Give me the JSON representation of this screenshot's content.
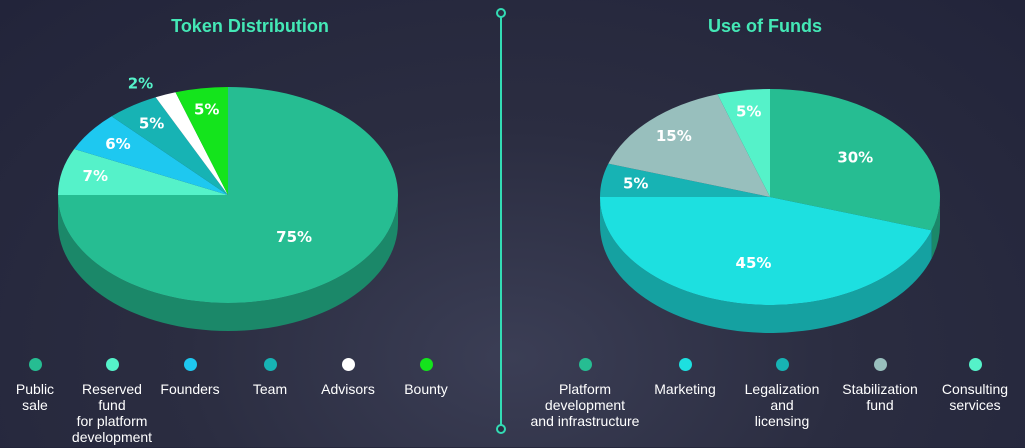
{
  "chart_data": [
    {
      "type": "pie",
      "title": "Token Distribution",
      "slices": [
        {
          "label": "Public\nsale",
          "value": 75,
          "display": "75%",
          "color": "#26bd92"
        },
        {
          "label": "Reserved\nfund\nfor platform\ndevelopment",
          "value": 7,
          "display": "7%",
          "color": "#55f2c9"
        },
        {
          "label": "Founders",
          "value": 6,
          "display": "6%",
          "color": "#1ec8f0"
        },
        {
          "label": "Team",
          "value": 5,
          "display": "5%",
          "color": "#17b3b4"
        },
        {
          "label": "Advisors",
          "value": 2,
          "display": "2%",
          "color": "#ffffff"
        },
        {
          "label": "Bounty",
          "value": 5,
          "display": "5%",
          "color": "#14e41c"
        }
      ]
    },
    {
      "type": "pie",
      "title": "Use of Funds",
      "slices": [
        {
          "label": "Platform\ndevelopment\nand infrastructure",
          "value": 30,
          "display": "30%",
          "color": "#26bd92"
        },
        {
          "label": "Marketing",
          "value": 45,
          "display": "45%",
          "color": "#1de0e0"
        },
        {
          "label": "Legalization\nand\nlicensing",
          "value": 5,
          "display": "5%",
          "color": "#17b3b4"
        },
        {
          "label": "Stabilization\nfund",
          "value": 15,
          "display": "15%",
          "color": "#98bfbd"
        },
        {
          "label": "Consulting\nservices",
          "value": 5,
          "display": "5%",
          "color": "#55f2c9"
        }
      ]
    }
  ]
}
